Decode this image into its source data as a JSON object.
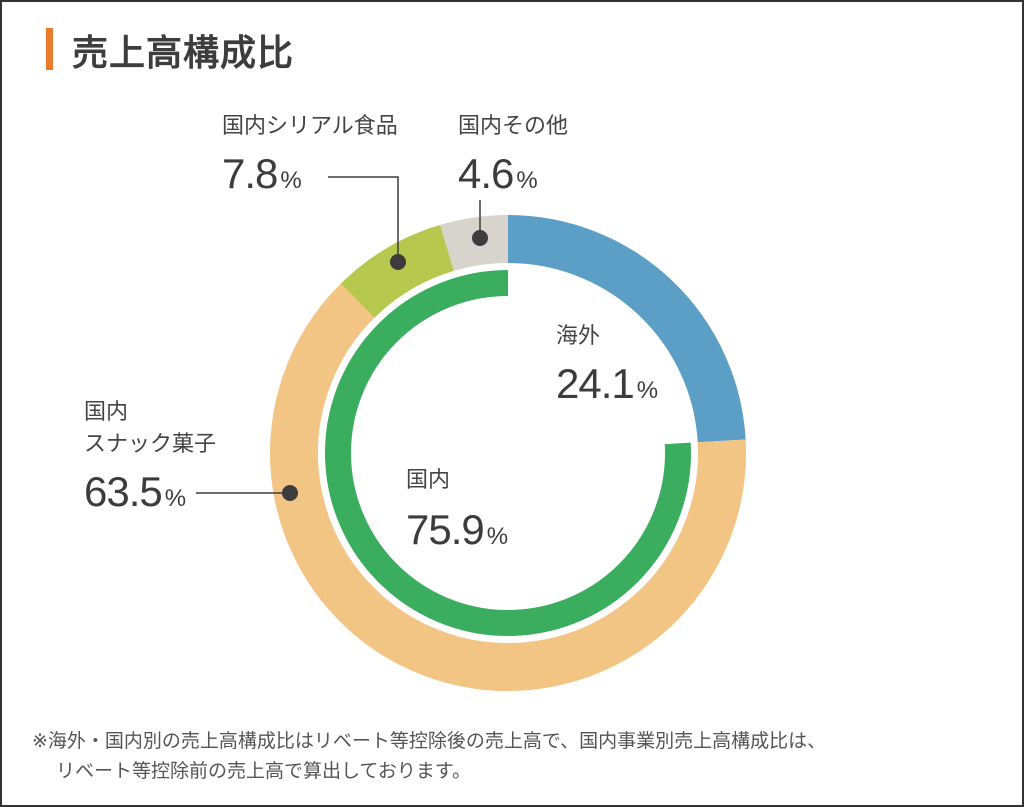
{
  "title": "売上高構成比",
  "chart_data": {
    "type": "pie",
    "title": "売上高構成比",
    "outer_ring": {
      "slices": [
        {
          "name": "海外",
          "value": 24.1,
          "color": "#5b9ec6",
          "label": "24.1"
        },
        {
          "name": "国内スナック菓子",
          "value": 63.5,
          "color": "#f2c585",
          "label": "63.5"
        },
        {
          "name": "国内シリアル食品",
          "value": 7.8,
          "color": "#b7c84e",
          "label": "7.8"
        },
        {
          "name": "国内その他",
          "value": 4.6,
          "color": "#d6d4cc",
          "label": "4.6"
        }
      ]
    },
    "inner_ring": {
      "slices": [
        {
          "name": "国内",
          "value": 75.9,
          "start": 24.1,
          "color": "#3aad5e",
          "label": "75.9"
        }
      ]
    },
    "percent_sign": "%"
  },
  "labels": {
    "overseas_name": "海外",
    "domestic_name": "国内",
    "snack_name_1": "国内",
    "snack_name_2": "スナック菓子",
    "cereal_name": "国内シリアル食品",
    "other_name": "国内その他"
  },
  "footnote": {
    "line1": "※海外・国内別の売上高構成比はリベート等控除後の売上高で、国内事業別売上高構成比は、",
    "line2": "リベート等控除前の売上高で算出しております。"
  }
}
